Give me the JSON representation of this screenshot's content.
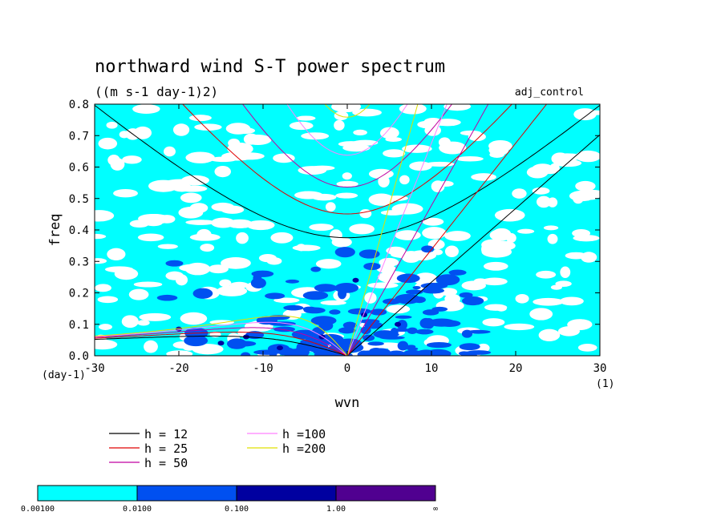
{
  "chart_data": {
    "type": "heatmap",
    "title": "northward wind S-T power spectrum",
    "subtitle": "((m s-1 day-1)2)",
    "experiment_label": "adj_control",
    "xlabel": "wvn",
    "ylabel": "freq",
    "x_unit_label": "(1)",
    "y_unit_label": "(day-1)",
    "xlim": [
      -30,
      30
    ],
    "ylim": [
      0,
      0.8
    ],
    "x_ticks": [
      -30,
      -20,
      -10,
      0,
      10,
      20,
      30
    ],
    "x_tick_labels": [
      "-30",
      "-20",
      "-10",
      "0",
      "10",
      "20",
      "30"
    ],
    "y_ticks": [
      0,
      0.1,
      0.2,
      0.3,
      0.4,
      0.5,
      0.6,
      0.7,
      0.8
    ],
    "y_tick_labels": [
      "0.0",
      "0.1",
      "0.2",
      "0.3",
      "0.4",
      "0.5",
      "0.6",
      "0.7",
      "0.8"
    ],
    "contour_levels": [
      0.001,
      0.01,
      0.1,
      1.0
    ],
    "colorbar": {
      "colors": [
        "#00ffff",
        "#0050f0",
        "#0000a0",
        "#500090"
      ],
      "labels": [
        "0.00100",
        "0.0100",
        "0.100",
        "1.00",
        "∞"
      ]
    },
    "dispersion_curves": [
      {
        "name": "h = 12",
        "h": 12,
        "color": "#000000"
      },
      {
        "name": "h = 25",
        "h": 25,
        "color": "#e00000"
      },
      {
        "name": "h = 50",
        "h": 50,
        "color": "#c000a0"
      },
      {
        "name": "h =100",
        "h": 100,
        "color": "#ff80ff"
      },
      {
        "name": "h =200",
        "h": 200,
        "color": "#e0e000"
      }
    ]
  }
}
